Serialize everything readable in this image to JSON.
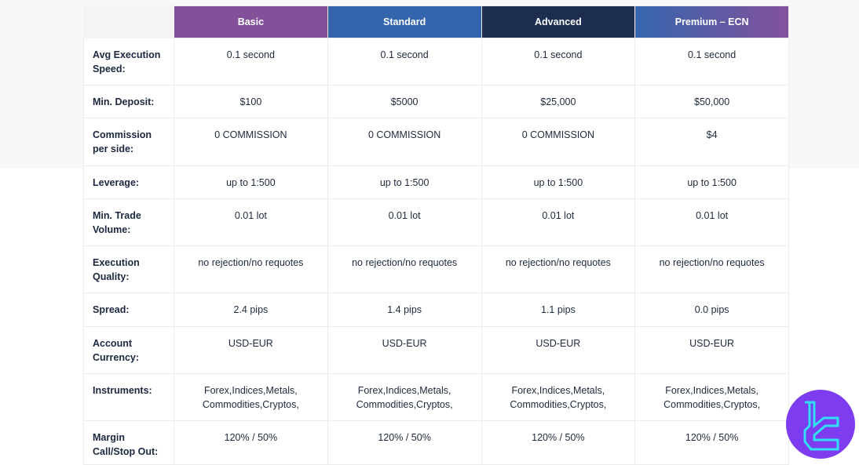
{
  "plans": [
    {
      "name": "Basic",
      "color": "#82519a"
    },
    {
      "name": "Standard",
      "color": "#3464ac"
    },
    {
      "name": "Advanced",
      "color": "#1c2d50"
    },
    {
      "name": "Premium – ECN",
      "color": "linear-gradient(90deg,#3466ae,#84519c)"
    }
  ],
  "rows": [
    {
      "label": "Avg Execution Speed:",
      "values": [
        "0.1 second",
        "0.1 second",
        "0.1 second",
        "0.1 second"
      ]
    },
    {
      "label": "Min. Deposit:",
      "values": [
        "$100",
        "$5000",
        "$25,000",
        "$50,000"
      ]
    },
    {
      "label": "Commission per side:",
      "values": [
        "0 COMMISSION",
        "0 COMMISSION",
        "0 COMMISSION",
        "$4"
      ]
    },
    {
      "label": "Leverage:",
      "values": [
        "up to 1:500",
        "up to 1:500",
        "up to 1:500",
        "up to 1:500"
      ]
    },
    {
      "label": "Min. Trade Volume:",
      "values": [
        "0.01 lot",
        "0.01 lot",
        "0.01 lot",
        "0.01 lot"
      ]
    },
    {
      "label": "Execution Quality:",
      "values": [
        "no rejection/no requotes",
        "no rejection/no requotes",
        "no rejection/no requotes",
        "no rejection/no requotes"
      ]
    },
    {
      "label": "Spread:",
      "values": [
        "2.4 pips",
        "1.4 pips",
        "1.1 pips",
        "0.0 pips"
      ]
    },
    {
      "label": "Account Currency:",
      "values": [
        "USD-EUR",
        "USD-EUR",
        "USD-EUR",
        "USD-EUR"
      ]
    },
    {
      "label": "Instruments:",
      "values": [
        "Forex,Indices,Metals, Commodities,Cryptos,",
        "Forex,Indices,Metals, Commodities,Cryptos,",
        "Forex,Indices,Metals, Commodities,Cryptos,",
        "Forex,Indices,Metals, Commodities,Cryptos,"
      ]
    },
    {
      "label": "Margin Call/Stop Out:",
      "values": [
        "120% / 50%",
        "120% / 50%",
        "120% / 50%",
        "120% / 50%"
      ]
    }
  ],
  "logo": {
    "icon": "tradingfinder-logo-icon",
    "color": "#7d3cf0",
    "accent": "#2fe0f0"
  }
}
